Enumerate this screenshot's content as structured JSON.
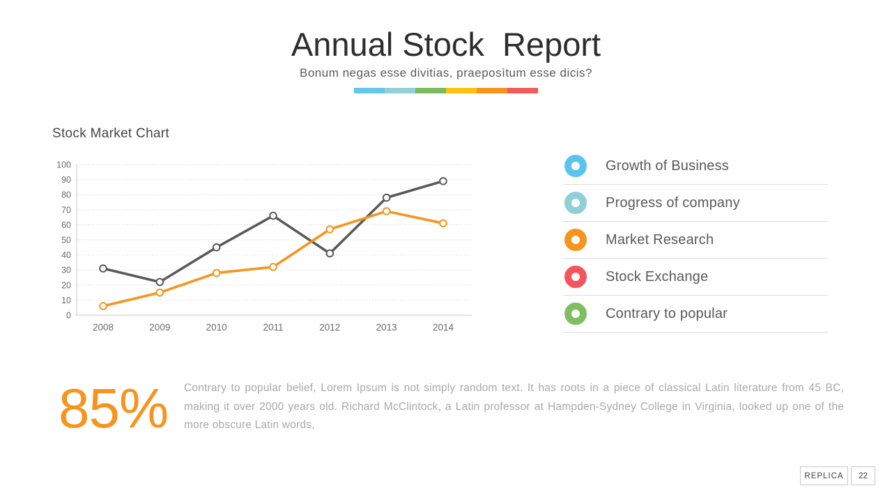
{
  "slide": {
    "title": "Annual Stock  Report",
    "subtitle": "Bonum negas esse divitias, praeposìtum esse dicis?",
    "accent_bar_colors": [
      "#64C7EE",
      "#92CFD6",
      "#7CB95F",
      "#FFC20E",
      "#F7941E",
      "#F15B5B"
    ]
  },
  "chart": {
    "heading": "Stock Market Chart"
  },
  "chart_data": {
    "type": "line",
    "title": "Stock Market Chart",
    "categories": [
      "2008",
      "2009",
      "2010",
      "2011",
      "2012",
      "2013",
      "2014"
    ],
    "series": [
      {
        "name": "gray-series",
        "color": "#58595B",
        "values": [
          31,
          22,
          45,
          66,
          41,
          78,
          89
        ]
      },
      {
        "name": "orange-series",
        "color": "#F7941E",
        "values": [
          6,
          15,
          28,
          32,
          57,
          69,
          61
        ]
      }
    ],
    "xlabel": "",
    "ylabel": "",
    "ylim": [
      0,
      100
    ],
    "ytick_step": 10,
    "grid": "horizontal-dotted",
    "legend_position": "right-panel",
    "marker": "open-circle"
  },
  "legend": {
    "items": [
      {
        "label": "Growth of Business",
        "color": "#5BC4EE"
      },
      {
        "label": "Progress of company",
        "color": "#8FCFD6"
      },
      {
        "label": "Market Research",
        "color": "#F7941E"
      },
      {
        "label": "Stock Exchange",
        "color": "#F4545C"
      },
      {
        "label": "Contrary to popular",
        "color": "#7FBF62"
      }
    ]
  },
  "stat": {
    "value": "85%",
    "description": "Contrary to popular belief, Lorem Ipsum is not simply random text. It has roots in a piece of classical Latin literature from 45 BC, making it over 2000 years old. Richard McClintock, a Latin professor at Hampden-Sydney College in Virginia, looked up one of the more obscure Latin words,"
  },
  "footer": {
    "brand": "REPLICA",
    "page_number": "22"
  }
}
